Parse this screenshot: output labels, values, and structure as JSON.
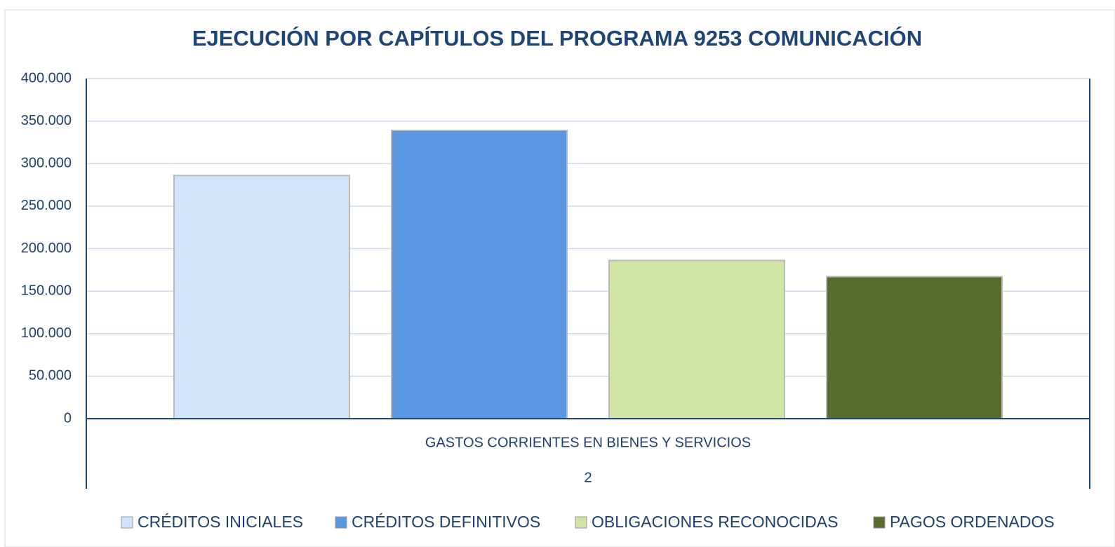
{
  "chart_data": {
    "type": "bar",
    "title": "EJECUCIÓN POR CAPÍTULOS DEL PROGRAMA 9253 COMUNICACIÓN",
    "categories": [
      "GASTOS CORRIENTES EN BIENES Y SERVICIOS"
    ],
    "category_groups": [
      "2"
    ],
    "series": [
      {
        "name": "CRÉDITOS INICIALES",
        "color": "#d0e3fa",
        "values": [
          286000
        ]
      },
      {
        "name": "CRÉDITOS DEFINITIVOS",
        "color": "#5b97e0",
        "values": [
          339000
        ]
      },
      {
        "name": "OBLIGACIONES RECONOCIDAS",
        "color": "#d0e4a6",
        "values": [
          186000
        ]
      },
      {
        "name": "PAGOS ORDENADOS",
        "color": "#566b2c",
        "values": [
          167000
        ]
      }
    ],
    "ylim": [
      0,
      400000
    ],
    "yticks": [
      0,
      {
        "value": 50000,
        "label": "50.000"
      },
      {
        "value": 100000,
        "label": "100.000"
      },
      {
        "value": 150000,
        "label": "150.000"
      },
      {
        "value": 200000,
        "label": "200.000"
      },
      {
        "value": 250000,
        "label": "250.000"
      },
      {
        "value": 300000,
        "label": "300.000"
      },
      {
        "value": 350000,
        "label": "350.000"
      },
      {
        "value": 400000,
        "label": "400.000"
      }
    ],
    "grid": true,
    "legend": "bottom"
  }
}
